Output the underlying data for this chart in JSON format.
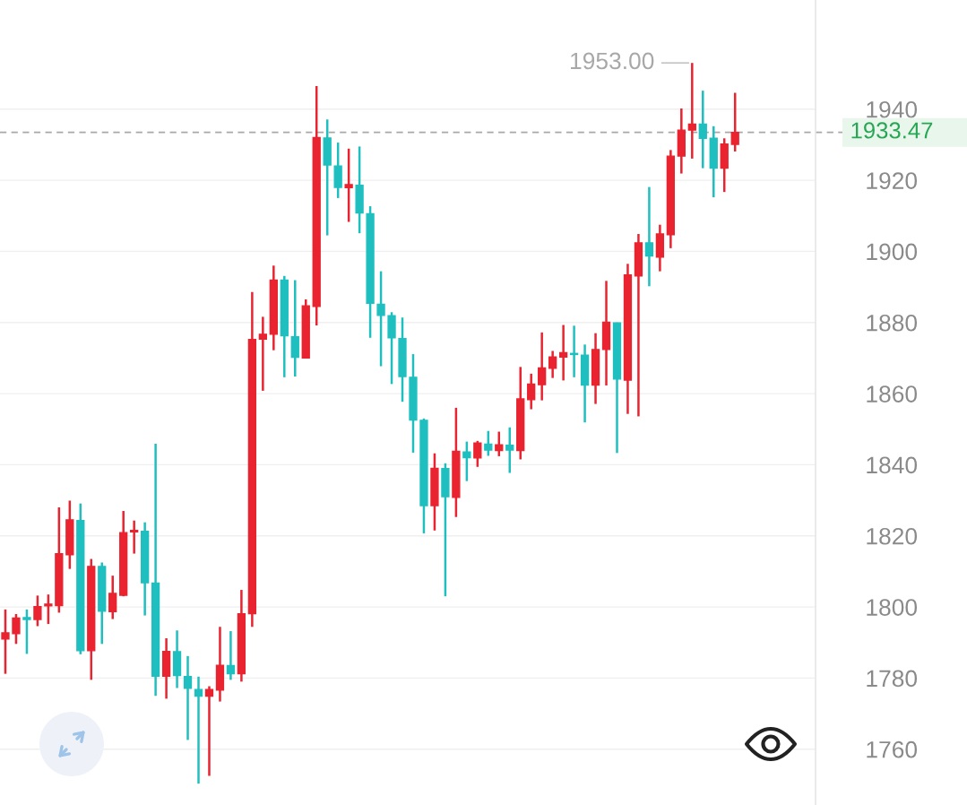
{
  "chart_data": {
    "type": "candlestick",
    "categories": [
      null,
      null,
      null,
      null,
      null,
      null,
      null,
      null,
      null,
      null,
      null,
      null,
      null,
      null,
      null,
      null,
      null,
      null,
      null,
      null,
      null,
      null,
      null,
      null,
      null,
      null,
      null,
      null,
      null,
      null,
      null,
      null,
      null,
      null,
      null,
      null,
      null,
      null,
      null,
      null,
      null,
      null,
      null,
      null,
      null,
      null,
      null,
      null,
      null,
      null,
      null,
      null,
      null,
      null,
      null,
      null,
      null,
      null,
      null,
      null,
      null,
      null,
      null,
      null,
      null,
      null,
      null,
      null,
      null,
      null,
      null,
      null,
      null,
      null,
      null,
      null
    ],
    "ohlc": [
      [
        1791.0,
        1799.3,
        1781.2,
        1792.7
      ],
      [
        1792.5,
        1798.0,
        1789.6,
        1796.9
      ],
      [
        1797.0,
        1799.3,
        1786.8,
        1796.5
      ],
      [
        1796.5,
        1803.2,
        1794.6,
        1800.1
      ],
      [
        1800.3,
        1803.5,
        1795.2,
        1800.8
      ],
      [
        1800.4,
        1828.0,
        1798.4,
        1815.0
      ],
      [
        1814.7,
        1829.9,
        1810.7,
        1824.5
      ],
      [
        1824.3,
        1829.1,
        1786.7,
        1787.7
      ],
      [
        1787.7,
        1813.5,
        1779.5,
        1811.4
      ],
      [
        1811.4,
        1812.5,
        1789.6,
        1798.8
      ],
      [
        1798.7,
        1808.8,
        1796.6,
        1803.8
      ],
      [
        1803.3,
        1827.0,
        1803.0,
        1820.9
      ],
      [
        1821.1,
        1824.3,
        1815.0,
        1821.5
      ],
      [
        1821.3,
        1823.8,
        1797.6,
        1806.8
      ],
      [
        1806.7,
        1845.9,
        1775.0,
        1780.5
      ],
      [
        1780.5,
        1791.2,
        1774.2,
        1787.5
      ],
      [
        1787.4,
        1793.4,
        1777.2,
        1780.7
      ],
      [
        1780.4,
        1786.2,
        1762.6,
        1777.1
      ],
      [
        1776.8,
        1780.4,
        1750.3,
        1774.9
      ],
      [
        1774.9,
        1777.7,
        1752.5,
        1776.8
      ],
      [
        1776.6,
        1794.4,
        1773.4,
        1783.6
      ],
      [
        1783.5,
        1793.2,
        1779.5,
        1781.2
      ],
      [
        1781.2,
        1804.8,
        1779.0,
        1798.1
      ],
      [
        1798.1,
        1888.6,
        1794.4,
        1875.2
      ],
      [
        1875.3,
        1881.6,
        1860.8,
        1876.7
      ],
      [
        1876.7,
        1896.0,
        1872.2,
        1891.9
      ],
      [
        1891.9,
        1893.1,
        1864.6,
        1876.3
      ],
      [
        1876.0,
        1891.9,
        1864.8,
        1870.2
      ],
      [
        1870.0,
        1886.5,
        1870.0,
        1884.7
      ],
      [
        1884.5,
        1946.5,
        1879.2,
        1932.0
      ],
      [
        1931.9,
        1937.1,
        1904.5,
        1924.3
      ],
      [
        1924.0,
        1930.6,
        1915.0,
        1918.0
      ],
      [
        1917.9,
        1928.9,
        1908.3,
        1918.8
      ],
      [
        1918.6,
        1929.5,
        1905.1,
        1910.8
      ],
      [
        1910.6,
        1912.7,
        1875.7,
        1885.4
      ],
      [
        1885.1,
        1894.4,
        1867.7,
        1882.0
      ],
      [
        1881.9,
        1882.9,
        1862.7,
        1875.7
      ],
      [
        1875.5,
        1881.4,
        1857.7,
        1864.8
      ],
      [
        1864.6,
        1871.1,
        1843.4,
        1852.6
      ],
      [
        1852.5,
        1853.0,
        1820.7,
        1828.5
      ],
      [
        1828.5,
        1843.2,
        1821.5,
        1839.0
      ],
      [
        1838.9,
        1840.4,
        1803.0,
        1831.0
      ],
      [
        1830.8,
        1856.0,
        1825.3,
        1843.8
      ],
      [
        1843.6,
        1846.5,
        1835.4,
        1842.0
      ],
      [
        1841.9,
        1846.7,
        1839.4,
        1846.1
      ],
      [
        1845.8,
        1849.5,
        1842.5,
        1844.1
      ],
      [
        1844.0,
        1849.3,
        1842.4,
        1845.6
      ],
      [
        1845.5,
        1850.5,
        1837.7,
        1844.1
      ],
      [
        1844.0,
        1867.5,
        1841.5,
        1858.5
      ],
      [
        1858.3,
        1865.6,
        1855.6,
        1862.7
      ],
      [
        1862.5,
        1877.2,
        1858.1,
        1867.2
      ],
      [
        1867.1,
        1872.0,
        1864.4,
        1870.3
      ],
      [
        1870.3,
        1879.3,
        1863.7,
        1871.5
      ],
      [
        1871.3,
        1879.1,
        1864.6,
        1871.0
      ],
      [
        1870.8,
        1873.8,
        1851.9,
        1862.4
      ],
      [
        1862.4,
        1877.0,
        1857.1,
        1872.4
      ],
      [
        1872.4,
        1891.7,
        1862.3,
        1880.1
      ],
      [
        1879.9,
        1880.0,
        1843.3,
        1864.1
      ],
      [
        1863.8,
        1896.5,
        1854.3,
        1893.4
      ],
      [
        1893.1,
        1904.9,
        1853.6,
        1902.4
      ],
      [
        1902.4,
        1918.1,
        1890.2,
        1898.7
      ],
      [
        1898.4,
        1907.5,
        1894.4,
        1904.9
      ],
      [
        1904.7,
        1928.5,
        1900.9,
        1926.8
      ],
      [
        1926.8,
        1940.2,
        1921.9,
        1934.1
      ],
      [
        1934.1,
        1953.0,
        1926.1,
        1935.8
      ],
      [
        1935.8,
        1945.2,
        1923.4,
        1931.8
      ],
      [
        1931.8,
        1935.2,
        1915.2,
        1923.4
      ],
      [
        1923.4,
        1931.8,
        1916.7,
        1930.2
      ],
      [
        1930.1,
        1944.6,
        1928.1,
        1933.47
      ],
      null,
      null,
      null,
      null,
      null,
      null,
      null
    ],
    "colors": [
      "#e9232f",
      "#e9232f",
      "#1fbfc0",
      "#e9232f",
      "#e9232f",
      "#e9232f",
      "#e9232f",
      "#1fbfc0",
      "#e9232f",
      "#1fbfc0",
      "#e9232f",
      "#e9232f",
      "#e9232f",
      "#1fbfc0",
      "#1fbfc0",
      "#e9232f",
      "#1fbfc0",
      "#1fbfc0",
      "#1fbfc0",
      "#e9232f",
      "#e9232f",
      "#1fbfc0",
      "#e9232f",
      "#e9232f",
      "#e9232f",
      "#e9232f",
      "#1fbfc0",
      "#1fbfc0",
      "#e9232f",
      "#e9232f",
      "#1fbfc0",
      "#1fbfc0",
      "#e9232f",
      "#1fbfc0",
      "#1fbfc0",
      "#1fbfc0",
      "#1fbfc0",
      "#1fbfc0",
      "#1fbfc0",
      "#1fbfc0",
      "#e9232f",
      "#1fbfc0",
      "#e9232f",
      "#1fbfc0",
      "#e9232f",
      "#1fbfc0",
      "#e9232f",
      "#1fbfc0",
      "#e9232f",
      "#e9232f",
      "#e9232f",
      "#e9232f",
      "#e9232f",
      "#1fbfc0",
      "#1fbfc0",
      "#e9232f",
      "#e9232f",
      "#1fbfc0",
      "#e9232f",
      "#e9232f",
      "#1fbfc0",
      "#e9232f",
      "#e9232f",
      "#e9232f",
      "#e9232f",
      "#1fbfc0",
      "#1fbfc0",
      "#e9232f",
      "#e9232f",
      null,
      null,
      null,
      null,
      null,
      null,
      null
    ],
    "ylim": [
      1744.3,
      1970.7
    ],
    "yticks": [
      1760,
      1780,
      1800,
      1820,
      1840,
      1860,
      1880,
      1900,
      1920,
      1940
    ],
    "grid": "y",
    "tick_labels": "y",
    "ref_lines": [
      {
        "axis": "y",
        "value": 1933.47,
        "label": "1933.47",
        "color": "#a8a8a8",
        "line_style": "dashed"
      }
    ],
    "annotations": [
      "1953.00"
    ]
  }
}
